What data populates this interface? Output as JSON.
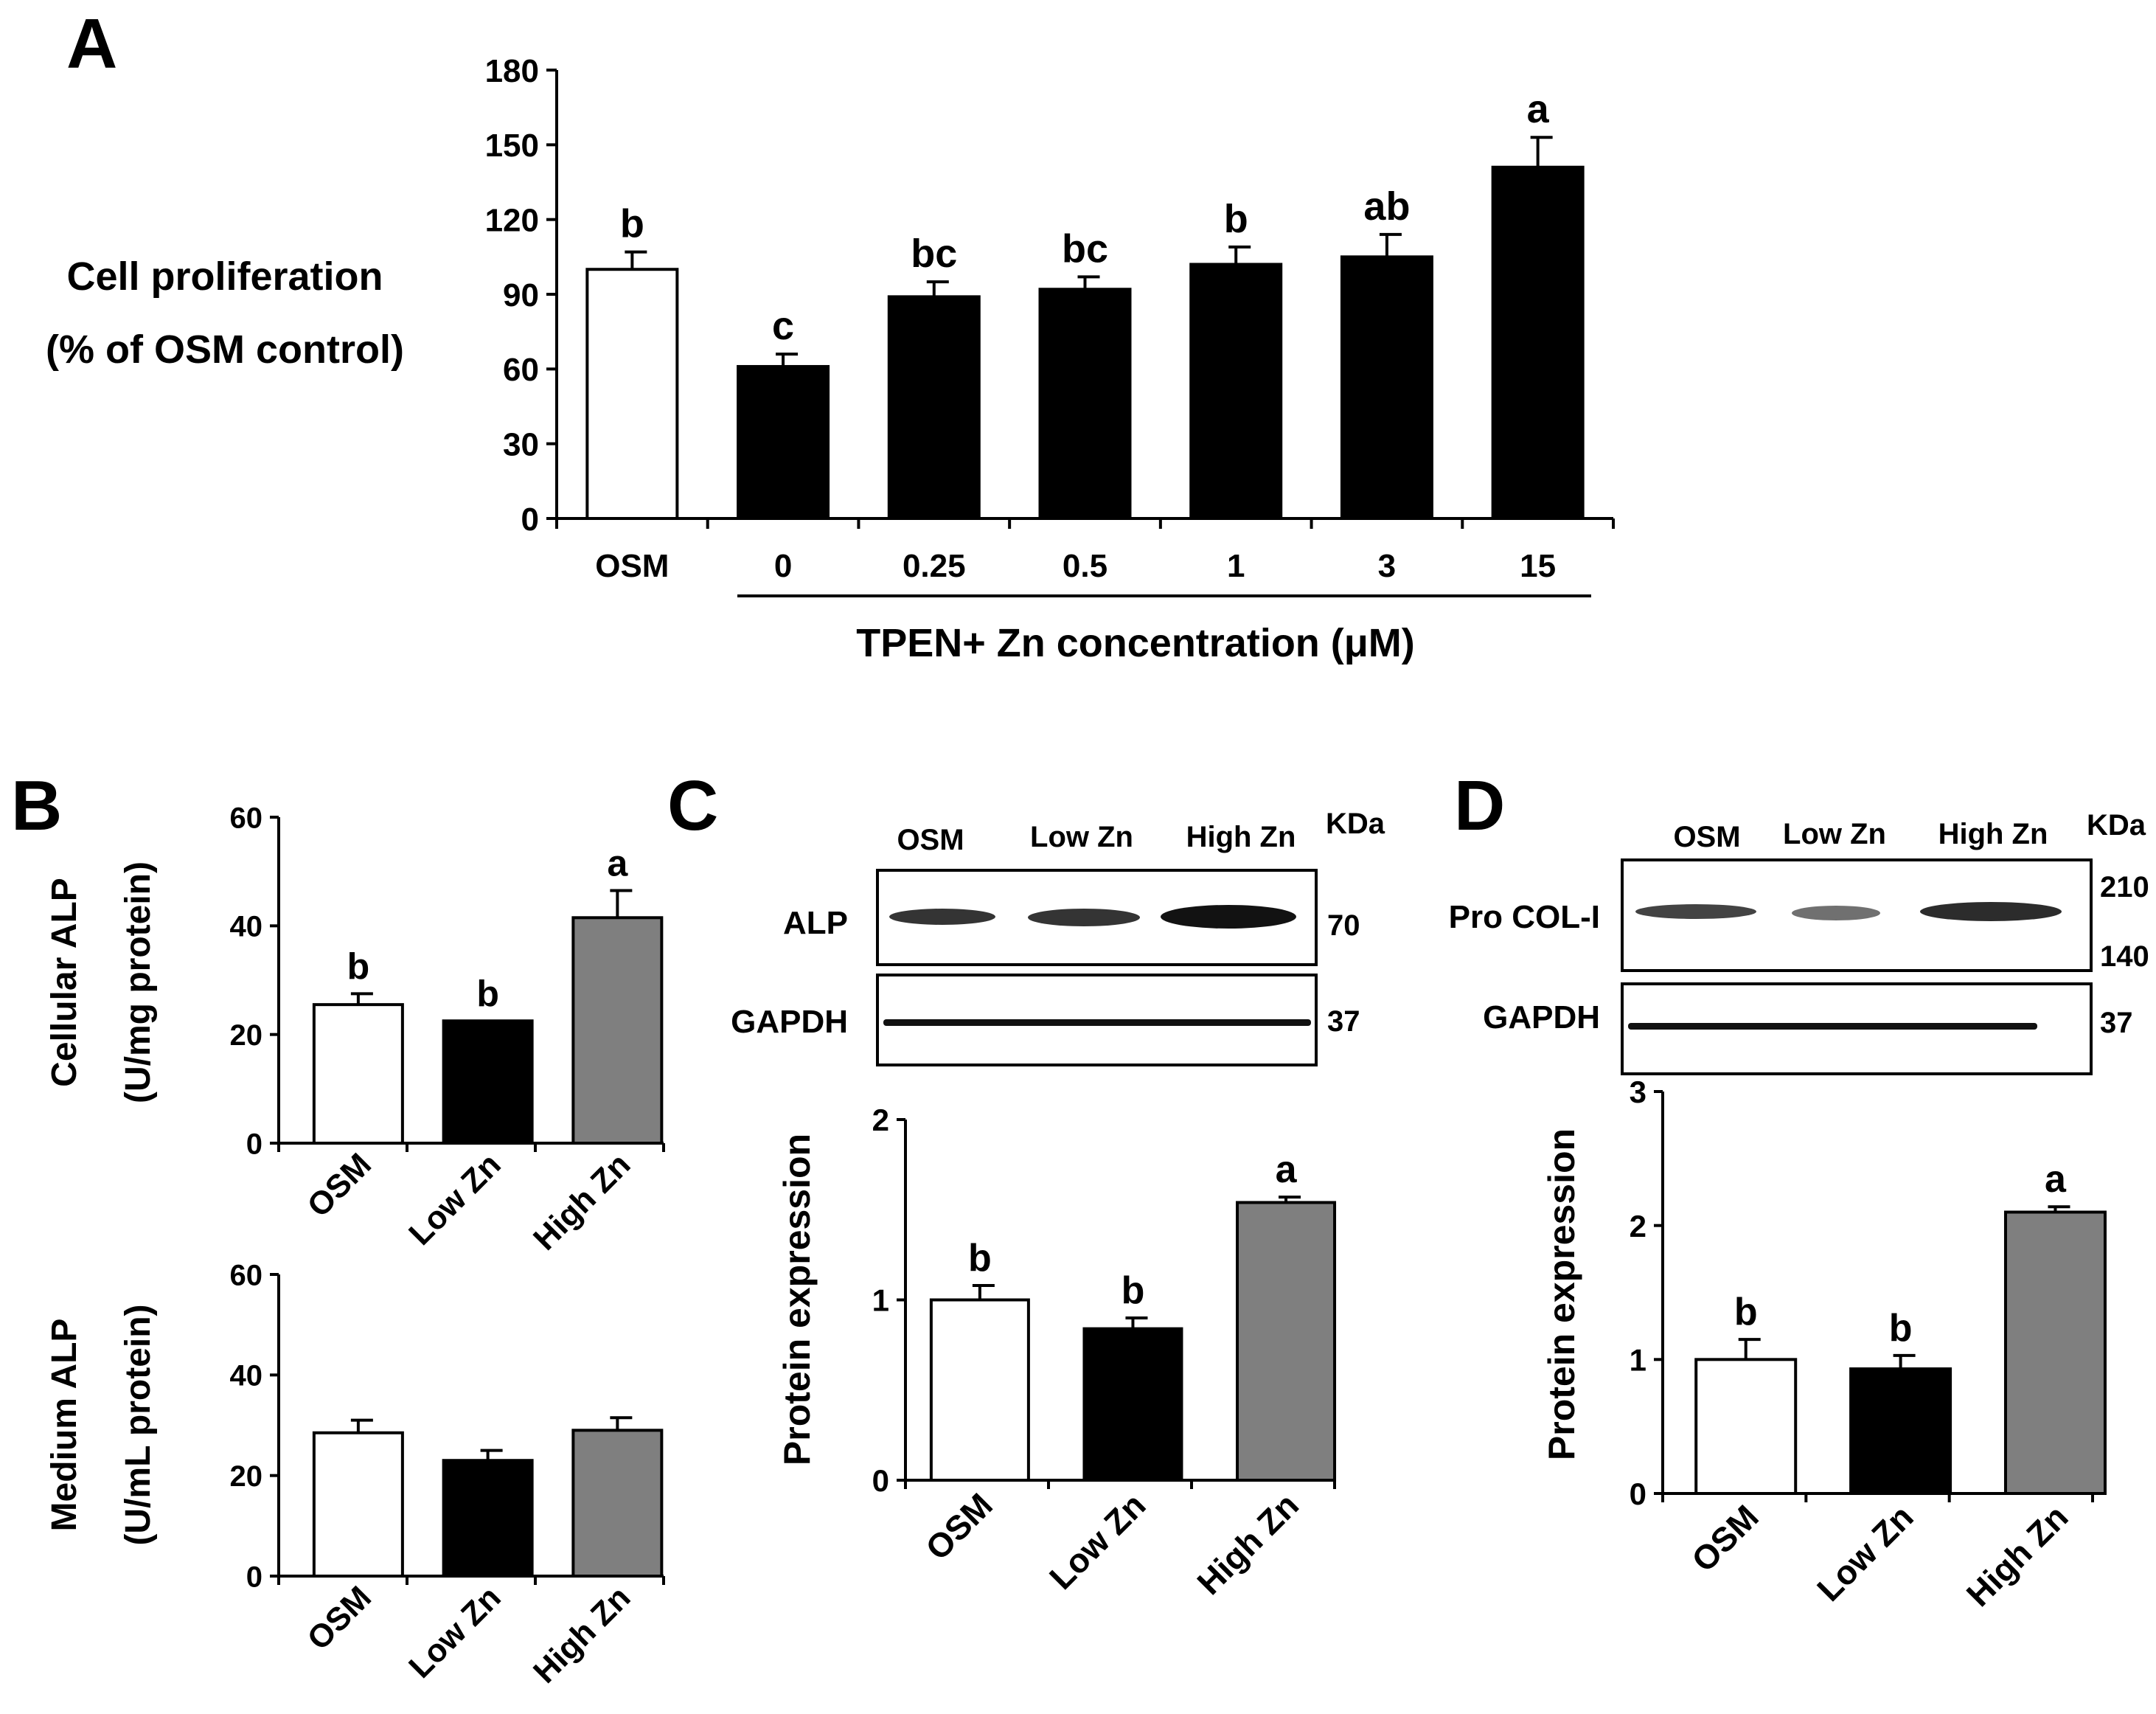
{
  "panels": {
    "A": {
      "label": "A"
    },
    "B": {
      "label": "B"
    },
    "C": {
      "label": "C"
    },
    "D": {
      "label": "D"
    }
  },
  "blots": {
    "C": {
      "columns": [
        "OSM",
        "Low Zn",
        "High Zn"
      ],
      "kda_header": "KDa",
      "rows": [
        {
          "label": "ALP",
          "markers": [
            "70"
          ]
        },
        {
          "label": "GAPDH",
          "markers": [
            "37"
          ]
        }
      ]
    },
    "D": {
      "columns": [
        "OSM",
        "Low Zn",
        "High Zn"
      ],
      "kda_header": "KDa",
      "rows": [
        {
          "label": "Pro COL-I",
          "markers": [
            "210",
            "140"
          ]
        },
        {
          "label": "GAPDH",
          "markers": [
            "37"
          ]
        }
      ]
    }
  },
  "colors": {
    "white": "#ffffff",
    "black": "#000000",
    "gray": "#7f7f7f"
  },
  "chart_data": [
    {
      "id": "A",
      "type": "bar",
      "categories": [
        "OSM",
        "0",
        "0.25",
        "0.5",
        "1",
        "3",
        "15"
      ],
      "values": [
        100,
        61,
        89,
        92,
        102,
        105,
        141
      ],
      "errors": [
        7,
        5,
        6,
        5,
        7,
        9,
        12
      ],
      "letters": [
        "b",
        "c",
        "bc",
        "bc",
        "b",
        "ab",
        "a"
      ],
      "fills": [
        "white",
        "black",
        "black",
        "black",
        "black",
        "black",
        "black"
      ],
      "ylabel": [
        "Cell proliferation",
        "(% of OSM control)"
      ],
      "xlabel": "TPEN+ Zn concentration (μM)",
      "ylim": [
        0,
        180
      ],
      "yticks": [
        0,
        30,
        60,
        90,
        120,
        150,
        180
      ]
    },
    {
      "id": "B1",
      "type": "bar",
      "categories": [
        "OSM",
        "Low Zn",
        "High Zn"
      ],
      "values": [
        25.5,
        22.5,
        41.5
      ],
      "errors": [
        2,
        0,
        5
      ],
      "letters": [
        "b",
        "b",
        "a"
      ],
      "fills": [
        "white",
        "black",
        "gray"
      ],
      "ylabel": [
        "Cellular ALP",
        "(U/mg protein)"
      ],
      "ylim": [
        0,
        60
      ],
      "yticks": [
        0,
        20,
        40,
        60
      ]
    },
    {
      "id": "B2",
      "type": "bar",
      "categories": [
        "OSM",
        "Low Zn",
        "High Zn"
      ],
      "values": [
        28.5,
        23,
        29
      ],
      "errors": [
        2.5,
        2,
        2.5
      ],
      "letters": [
        "",
        "",
        ""
      ],
      "fills": [
        "white",
        "black",
        "gray"
      ],
      "ylabel": [
        "Medium ALP",
        "(U/mL protein)"
      ],
      "ylim": [
        0,
        60
      ],
      "yticks": [
        0,
        20,
        40,
        60
      ]
    },
    {
      "id": "C",
      "type": "bar",
      "categories": [
        "OSM",
        "Low Zn",
        "High Zn"
      ],
      "values": [
        1.0,
        0.84,
        1.54
      ],
      "errors": [
        0.08,
        0.06,
        0.03
      ],
      "letters": [
        "b",
        "b",
        "a"
      ],
      "fills": [
        "white",
        "black",
        "gray"
      ],
      "ylabel": [
        "Protein expression"
      ],
      "ylim": [
        0,
        2
      ],
      "yticks": [
        0,
        1,
        2
      ]
    },
    {
      "id": "D",
      "type": "bar",
      "categories": [
        "OSM",
        "Low Zn",
        "High Zn"
      ],
      "values": [
        1.0,
        0.93,
        2.1
      ],
      "errors": [
        0.15,
        0.1,
        0.04
      ],
      "letters": [
        "b",
        "b",
        "a"
      ],
      "fills": [
        "white",
        "black",
        "gray"
      ],
      "ylabel": [
        "Protein expression"
      ],
      "ylim": [
        0,
        3
      ],
      "yticks": [
        0,
        1,
        2,
        3
      ]
    }
  ]
}
